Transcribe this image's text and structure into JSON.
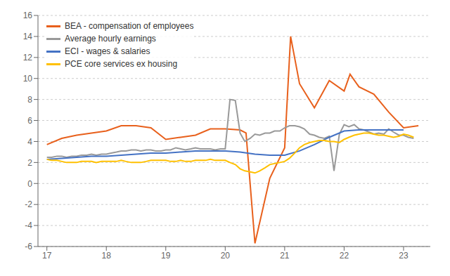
{
  "chart_data": {
    "type": "line",
    "xlim": [
      16.85,
      23.45
    ],
    "ylim": [
      -6,
      16
    ],
    "xticks": [
      17,
      18,
      19,
      20,
      21,
      22,
      23
    ],
    "yticks": [
      -6,
      -4,
      -2,
      0,
      2,
      4,
      6,
      8,
      10,
      12,
      14,
      16
    ],
    "grid": "y",
    "legend": "upper left",
    "series": [
      {
        "name": "BEA - compensation of employees",
        "color": "#E8601C",
        "x": [
          17.0,
          17.25,
          17.5,
          17.75,
          18.0,
          18.25,
          18.5,
          18.75,
          19.0,
          19.25,
          19.5,
          19.75,
          20.0,
          20.25,
          20.35,
          20.5,
          20.75,
          21.0,
          21.1,
          21.25,
          21.5,
          21.75,
          22.0,
          22.1,
          22.25,
          22.5,
          22.75,
          23.0,
          23.25
        ],
        "values": [
          3.7,
          4.3,
          4.6,
          4.8,
          5.0,
          5.5,
          5.5,
          5.3,
          4.2,
          4.4,
          4.6,
          5.2,
          5.2,
          5.1,
          4.8,
          -5.7,
          0.5,
          3.4,
          14.0,
          9.5,
          7.2,
          9.8,
          8.8,
          10.4,
          9.2,
          8.5,
          6.8,
          5.3,
          5.5
        ]
      },
      {
        "name": "Average hourly earnings",
        "color": "#999999",
        "x": [
          17.0,
          17.08,
          17.17,
          17.25,
          17.33,
          17.42,
          17.5,
          17.58,
          17.67,
          17.75,
          17.83,
          17.92,
          18.0,
          18.08,
          18.17,
          18.25,
          18.33,
          18.42,
          18.5,
          18.58,
          18.67,
          18.75,
          18.83,
          18.92,
          19.0,
          19.08,
          19.17,
          19.25,
          19.33,
          19.42,
          19.5,
          19.58,
          19.67,
          19.75,
          19.83,
          19.92,
          20.0,
          20.08,
          20.17,
          20.25,
          20.33,
          20.42,
          20.5,
          20.58,
          20.67,
          20.75,
          20.83,
          20.92,
          21.0,
          21.08,
          21.17,
          21.25,
          21.33,
          21.42,
          21.5,
          21.58,
          21.67,
          21.75,
          21.83,
          21.92,
          22.0,
          22.08,
          22.17,
          22.25,
          22.33,
          22.42,
          22.5,
          22.58,
          22.67,
          22.75,
          22.83,
          22.92,
          23.0,
          23.08,
          23.17
        ],
        "values": [
          2.5,
          2.5,
          2.6,
          2.6,
          2.5,
          2.6,
          2.6,
          2.7,
          2.7,
          2.8,
          2.7,
          2.8,
          2.8,
          2.9,
          3.0,
          3.1,
          3.1,
          3.2,
          3.2,
          3.1,
          3.2,
          3.2,
          3.1,
          3.1,
          3.2,
          3.2,
          3.4,
          3.3,
          3.2,
          3.3,
          3.4,
          3.3,
          3.3,
          3.3,
          3.2,
          3.3,
          3.3,
          8.0,
          7.9,
          4.8,
          4.0,
          4.3,
          4.7,
          4.6,
          4.8,
          4.8,
          5.0,
          5.0,
          5.3,
          5.5,
          5.5,
          5.4,
          5.2,
          4.7,
          4.6,
          4.4,
          4.3,
          4.5,
          1.2,
          4.7,
          5.6,
          5.4,
          5.6,
          5.2,
          5.1,
          4.9,
          4.7,
          4.8,
          4.7,
          5.2,
          4.9,
          4.6,
          4.6,
          4.4,
          4.3
        ]
      },
      {
        "name": "ECI - wages & salaries",
        "color": "#4472C4",
        "x": [
          17.0,
          17.25,
          17.5,
          17.75,
          18.0,
          18.25,
          18.5,
          18.75,
          19.0,
          19.25,
          19.5,
          19.75,
          20.0,
          20.25,
          20.5,
          20.75,
          21.0,
          21.25,
          21.5,
          21.75,
          22.0,
          22.25,
          22.5,
          22.75,
          23.0
        ],
        "values": [
          2.3,
          2.4,
          2.5,
          2.6,
          2.6,
          2.7,
          2.8,
          2.9,
          2.9,
          3.0,
          3.1,
          3.1,
          3.1,
          3.0,
          2.8,
          2.7,
          2.7,
          3.1,
          3.7,
          4.4,
          5.0,
          5.1,
          5.1,
          5.1,
          5.1
        ]
      },
      {
        "name": "PCE core services ex housing",
        "color": "#FFC000",
        "x": [
          17.0,
          17.08,
          17.17,
          17.25,
          17.33,
          17.42,
          17.5,
          17.58,
          17.67,
          17.75,
          17.83,
          17.92,
          18.0,
          18.08,
          18.17,
          18.25,
          18.33,
          18.42,
          18.5,
          18.58,
          18.67,
          18.75,
          18.83,
          18.92,
          19.0,
          19.08,
          19.17,
          19.25,
          19.33,
          19.42,
          19.5,
          19.58,
          19.67,
          19.75,
          19.83,
          19.92,
          20.0,
          20.08,
          20.17,
          20.25,
          20.33,
          20.42,
          20.5,
          20.58,
          20.67,
          20.75,
          20.83,
          20.92,
          21.0,
          21.08,
          21.17,
          21.25,
          21.33,
          21.42,
          21.5,
          21.58,
          21.67,
          21.75,
          21.83,
          21.92,
          22.0,
          22.08,
          22.17,
          22.25,
          22.33,
          22.42,
          22.5,
          22.58,
          22.67,
          22.75,
          22.83,
          22.92,
          23.0,
          23.08,
          23.17
        ],
        "values": [
          2.3,
          2.2,
          2.2,
          2.1,
          2.0,
          2.0,
          2.0,
          2.1,
          2.1,
          2.1,
          2.0,
          2.1,
          2.1,
          2.1,
          2.1,
          2.2,
          2.1,
          2.0,
          2.0,
          2.0,
          2.1,
          2.2,
          2.2,
          2.2,
          2.2,
          2.1,
          2.1,
          2.2,
          2.1,
          2.1,
          2.2,
          2.2,
          2.2,
          2.3,
          2.2,
          2.2,
          2.2,
          2.0,
          1.8,
          1.4,
          1.2,
          1.1,
          1.0,
          1.2,
          1.5,
          1.8,
          1.9,
          2.0,
          2.1,
          2.4,
          2.9,
          3.4,
          3.7,
          3.9,
          4.0,
          4.1,
          4.1,
          4.0,
          4.0,
          3.9,
          4.2,
          4.4,
          4.6,
          4.7,
          4.8,
          4.8,
          4.7,
          4.6,
          4.6,
          4.5,
          4.4,
          4.5,
          4.7,
          4.6,
          4.4
        ]
      }
    ]
  }
}
